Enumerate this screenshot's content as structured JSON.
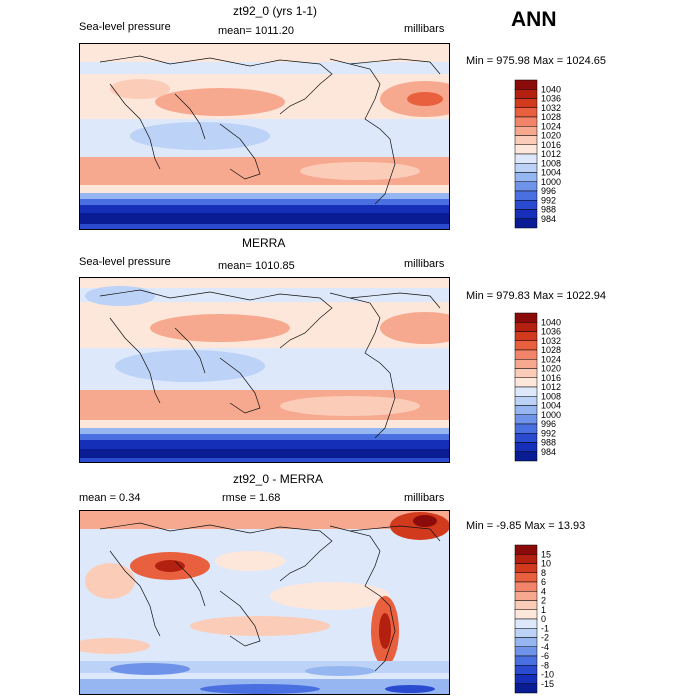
{
  "season": "ANN",
  "panels": [
    {
      "title": "zt92_0 (yrs 1-1)",
      "left_label": "Sea-level pressure",
      "center_label": "mean= 1011.20",
      "right_label": "millibars",
      "minmax": "Min = 975.98 Max = 1024.65",
      "levels": [
        "1040",
        "1036",
        "1032",
        "1028",
        "1024",
        "1020",
        "1016",
        "1012",
        "1008",
        "1004",
        "1000",
        "996",
        "992",
        "988",
        "984"
      ],
      "colors": [
        "#8b0a0a",
        "#b3200f",
        "#d23a1e",
        "#e8603d",
        "#f2846a",
        "#f7a98f",
        "#fbcdb8",
        "#fde7db",
        "#dde8fa",
        "#bcd2f6",
        "#95b6f0",
        "#6e93e8",
        "#4a6fe0",
        "#2a4bd0",
        "#152fb8",
        "#0a1c93"
      ]
    },
    {
      "title": "MERRA",
      "left_label": "Sea-level pressure",
      "center_label": "mean= 1010.85",
      "right_label": "millibars",
      "minmax": "Min = 979.83 Max = 1022.94",
      "levels": [
        "1040",
        "1036",
        "1032",
        "1028",
        "1024",
        "1020",
        "1016",
        "1012",
        "1008",
        "1004",
        "1000",
        "996",
        "992",
        "988",
        "984"
      ],
      "colors": [
        "#8b0a0a",
        "#b3200f",
        "#d23a1e",
        "#e8603d",
        "#f2846a",
        "#f7a98f",
        "#fbcdb8",
        "#fde7db",
        "#dde8fa",
        "#bcd2f6",
        "#95b6f0",
        "#6e93e8",
        "#4a6fe0",
        "#2a4bd0",
        "#152fb8",
        "#0a1c93"
      ]
    },
    {
      "title": "zt92_0 - MERRA",
      "left_label": "mean =    0.34",
      "center_label": "rmse =    1.68",
      "right_label": "millibars",
      "minmax": "Min =  -9.85 Max =  13.93",
      "levels": [
        "15",
        "10",
        "8",
        "6",
        "4",
        "2",
        "1",
        "0",
        "-1",
        "-2",
        "-4",
        "-6",
        "-8",
        "-10",
        "-15"
      ],
      "colors": [
        "#8b0a0a",
        "#b3200f",
        "#d23a1e",
        "#e8603d",
        "#f2846a",
        "#f7a98f",
        "#fbcdb8",
        "#fde7db",
        "#dde8fa",
        "#bcd2f6",
        "#95b6f0",
        "#6e93e8",
        "#4a6fe0",
        "#2a4bd0",
        "#152fb8",
        "#0a1c93"
      ]
    }
  ],
  "chart_data": {
    "type": "heatmap",
    "description_fields": [
      "season",
      "panels"
    ],
    "variable": "Sea-level pressure",
    "units": "millibars",
    "season": "ANN",
    "maps": [
      {
        "title": "zt92_0 (yrs 1-1)",
        "mean": 1011.2,
        "min": 975.98,
        "max": 1024.65,
        "levels": [
          984,
          988,
          992,
          996,
          1000,
          1004,
          1008,
          1012,
          1016,
          1020,
          1024,
          1028,
          1032,
          1036,
          1040
        ]
      },
      {
        "title": "MERRA",
        "mean": 1010.85,
        "min": 979.83,
        "max": 1022.94,
        "levels": [
          984,
          988,
          992,
          996,
          1000,
          1004,
          1008,
          1012,
          1016,
          1020,
          1024,
          1028,
          1032,
          1036,
          1040
        ]
      },
      {
        "title": "zt92_0 - MERRA",
        "mean": 0.34,
        "rmse": 1.68,
        "min": -9.85,
        "max": 13.93,
        "levels": [
          -15,
          -10,
          -8,
          -6,
          -4,
          -2,
          -1,
          0,
          1,
          2,
          4,
          6,
          8,
          10,
          15
        ]
      }
    ]
  }
}
